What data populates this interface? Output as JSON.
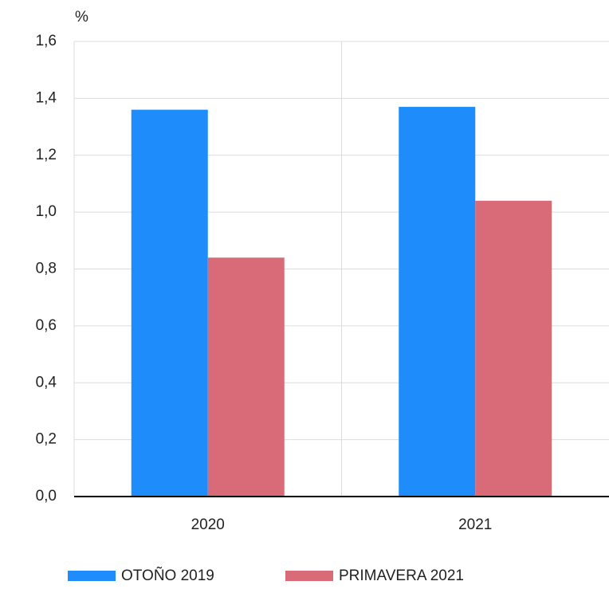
{
  "chart_data": {
    "type": "bar",
    "y_label": "%",
    "categories": [
      "2020",
      "2021"
    ],
    "series": [
      {
        "name": "OTOÑO 2019",
        "color": "#1e8cfa",
        "values": [
          1.36,
          1.37
        ]
      },
      {
        "name": "PRIMAVERA 2021",
        "color": "#d96b78",
        "values": [
          0.84,
          1.04
        ]
      }
    ],
    "ylim": [
      0,
      1.6
    ],
    "yticks": [
      {
        "value": 0,
        "label": "0,0"
      },
      {
        "value": 0.2,
        "label": "0,2"
      },
      {
        "value": 0.4,
        "label": "0,4"
      },
      {
        "value": 0.6,
        "label": "0,6"
      },
      {
        "value": 0.8,
        "label": "0,8"
      },
      {
        "value": 1.0,
        "label": "1,0"
      },
      {
        "value": 1.2,
        "label": "1,2"
      },
      {
        "value": 1.4,
        "label": "1,4"
      },
      {
        "value": 1.6,
        "label": "1,6"
      }
    ],
    "grid": true,
    "legend": "bottom"
  }
}
